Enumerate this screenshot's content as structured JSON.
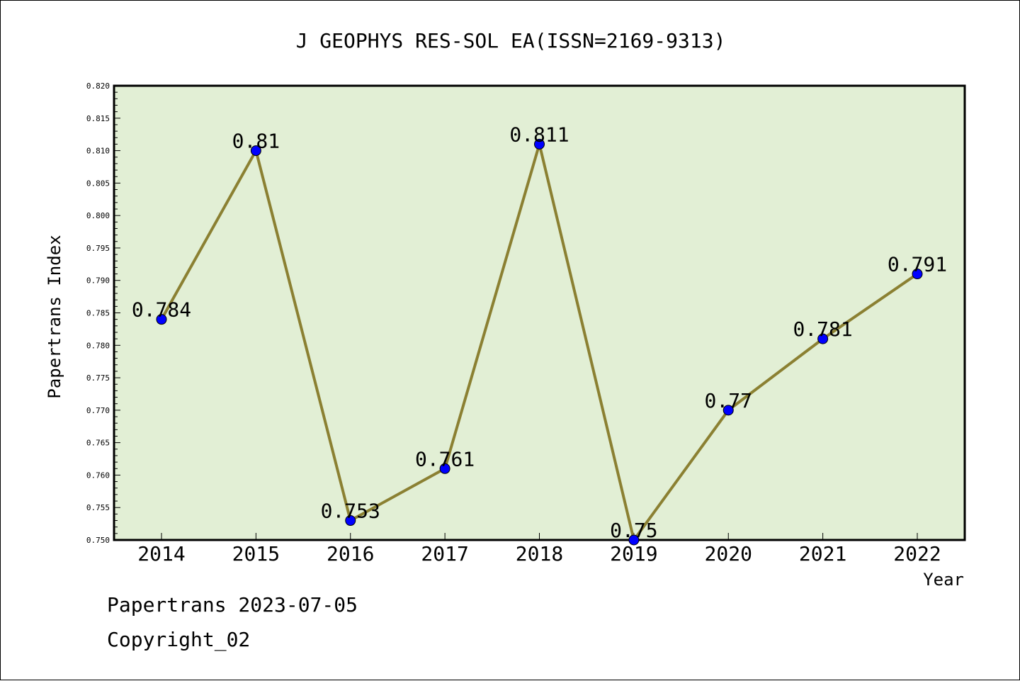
{
  "chart_data": {
    "type": "line",
    "title": "J GEOPHYS RES-SOL EA(ISSN=2169-9313)",
    "xlabel": "Year",
    "ylabel": "Papertrans Index",
    "categories": [
      "2014",
      "2015",
      "2016",
      "2017",
      "2018",
      "2019",
      "2020",
      "2021",
      "2022"
    ],
    "values": [
      0.784,
      0.81,
      0.753,
      0.761,
      0.811,
      0.75,
      0.77,
      0.781,
      0.791
    ],
    "data_labels": [
      "0.784",
      "0.81",
      "0.753",
      "0.761",
      "0.811",
      "0.75",
      "0.77",
      "0.781",
      "0.791"
    ],
    "ylim": [
      0.75,
      0.82
    ],
    "y_ticks": [
      "0.750",
      "0.755",
      "0.760",
      "0.765",
      "0.770",
      "0.775",
      "0.780",
      "0.785",
      "0.790",
      "0.795",
      "0.800",
      "0.805",
      "0.810",
      "0.815",
      "0.820"
    ],
    "grid": false,
    "legend": "none",
    "colors": {
      "plot_background": "#e2efd5",
      "line": "#8b8032",
      "marker": "#0000ff"
    }
  },
  "footer": {
    "stamp": "Papertrans 2023-07-05",
    "copyright": "Copyright_02"
  }
}
